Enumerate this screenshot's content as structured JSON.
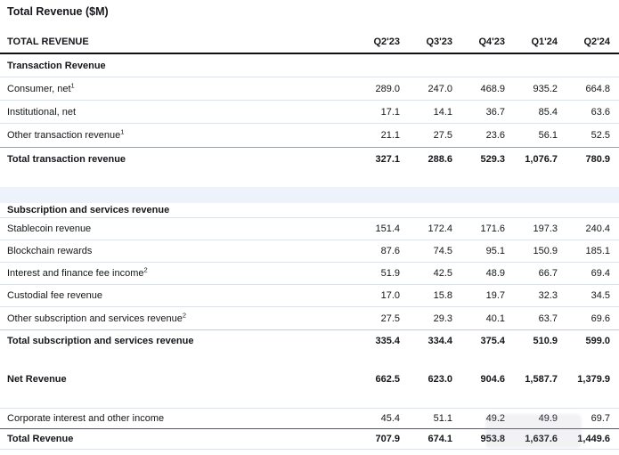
{
  "page": {
    "title": "Total Revenue ($M)"
  },
  "colors": {
    "text": "#14161a",
    "separator_line": "#d9e2f0",
    "total_rule": "#9aa3b0",
    "subtotal_rule": "#c4ccd8",
    "grand_total_rule": "#555b64",
    "header_rule": "#0d0f12",
    "spacer_band_tint": "#eef3fb",
    "background": "#ffffff"
  },
  "table": {
    "header": {
      "label": "TOTAL REVENUE",
      "quarters": [
        "Q2'23",
        "Q3'23",
        "Q4'23",
        "Q1'24",
        "Q2'24"
      ]
    },
    "rows": [
      {
        "label": "Transaction Revenue"
      },
      {
        "label": "Consumer, net",
        "sup": "1",
        "values": [
          "289.0",
          "247.0",
          "468.9",
          "935.2",
          "664.8"
        ]
      },
      {
        "label": "Institutional, net",
        "values": [
          "17.1",
          "14.1",
          "36.7",
          "85.4",
          "63.6"
        ]
      },
      {
        "label": "Other transaction revenue",
        "sup": "1",
        "values": [
          "21.1",
          "27.5",
          "23.6",
          "56.1",
          "52.5"
        ]
      },
      {
        "label": "Total transaction revenue",
        "values": [
          "327.1",
          "288.6",
          "529.3",
          "1,076.7",
          "780.9"
        ]
      },
      {
        "label": "Subscription and services revenue"
      },
      {
        "label": "Stablecoin revenue",
        "values": [
          "151.4",
          "172.4",
          "171.6",
          "197.3",
          "240.4"
        ]
      },
      {
        "label": "Blockchain rewards",
        "values": [
          "87.6",
          "74.5",
          "95.1",
          "150.9",
          "185.1"
        ]
      },
      {
        "label": "Interest and finance fee income",
        "sup": "2",
        "values": [
          "51.9",
          "42.5",
          "48.9",
          "66.7",
          "69.4"
        ]
      },
      {
        "label": "Custodial fee revenue",
        "values": [
          "17.0",
          "15.8",
          "19.7",
          "32.3",
          "34.5"
        ]
      },
      {
        "label": "Other subscription and services revenue",
        "sup": "2",
        "values": [
          "27.5",
          "29.3",
          "40.1",
          "63.7",
          "69.6"
        ]
      },
      {
        "label": "Total subscription and services revenue",
        "values": [
          "335.4",
          "334.4",
          "375.4",
          "510.9",
          "599.0"
        ]
      },
      {
        "label": "Net Revenue",
        "values": [
          "662.5",
          "623.0",
          "904.6",
          "1,587.7",
          "1,379.9"
        ]
      },
      {
        "label": "Corporate interest and other income",
        "values": [
          "45.4",
          "51.1",
          "49.2",
          "49.9",
          "69.7"
        ]
      },
      {
        "label": "Total Revenue",
        "values": [
          "707.9",
          "674.1",
          "953.8",
          "1,637.6",
          "1,449.6"
        ]
      }
    ]
  }
}
